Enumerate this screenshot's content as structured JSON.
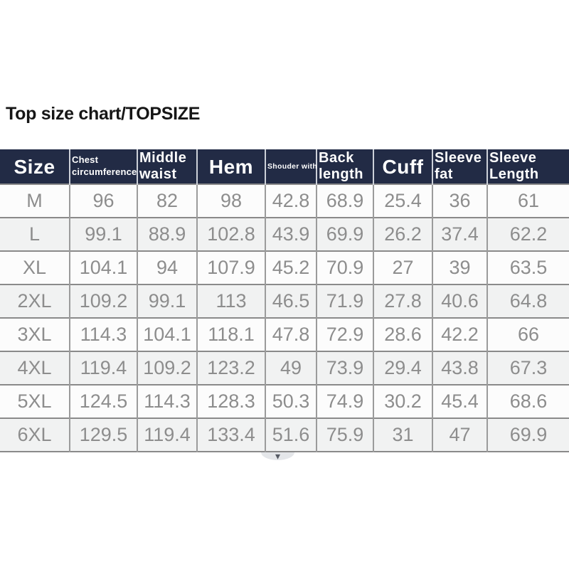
{
  "chart_data": {
    "type": "table",
    "title": "Top size chart/TOPSIZE",
    "columns": [
      "Size",
      "Chest circumference",
      "Middle waist",
      "Hem",
      "Shouder with",
      "Back length",
      "Cuff",
      "Sleeve fat",
      "Sleeve Length"
    ],
    "rows": [
      [
        "M",
        96,
        82,
        98,
        42.8,
        68.9,
        25.4,
        36,
        61
      ],
      [
        "L",
        99.1,
        88.9,
        102.8,
        43.9,
        69.9,
        26.2,
        37.4,
        62.2
      ],
      [
        "XL",
        104.1,
        94,
        107.9,
        45.2,
        70.9,
        27,
        39,
        63.5
      ],
      [
        "2XL",
        109.2,
        99.1,
        113,
        46.5,
        71.9,
        27.8,
        40.6,
        64.8
      ],
      [
        "3XL",
        114.3,
        104.1,
        118.1,
        47.8,
        72.9,
        28.6,
        42.2,
        66
      ],
      [
        "4XL",
        119.4,
        109.2,
        123.2,
        49,
        73.9,
        29.4,
        43.8,
        67.3
      ],
      [
        "5XL",
        124.5,
        114.3,
        128.3,
        50.3,
        74.9,
        30.2,
        45.4,
        68.6
      ],
      [
        "6XL",
        129.5,
        119.4,
        133.4,
        51.6,
        75.9,
        31,
        47,
        69.9
      ]
    ]
  },
  "icons": {
    "chevron_down": "▾"
  },
  "colors": {
    "header_bg": "#222b45",
    "header_text": "#ffffff",
    "row_bg": "#fcfcfc",
    "row_alt_bg": "#f1f2f2",
    "grid_border": "#8a8a8a",
    "body_text": "#8d8d8d",
    "title_text": "#161616"
  }
}
